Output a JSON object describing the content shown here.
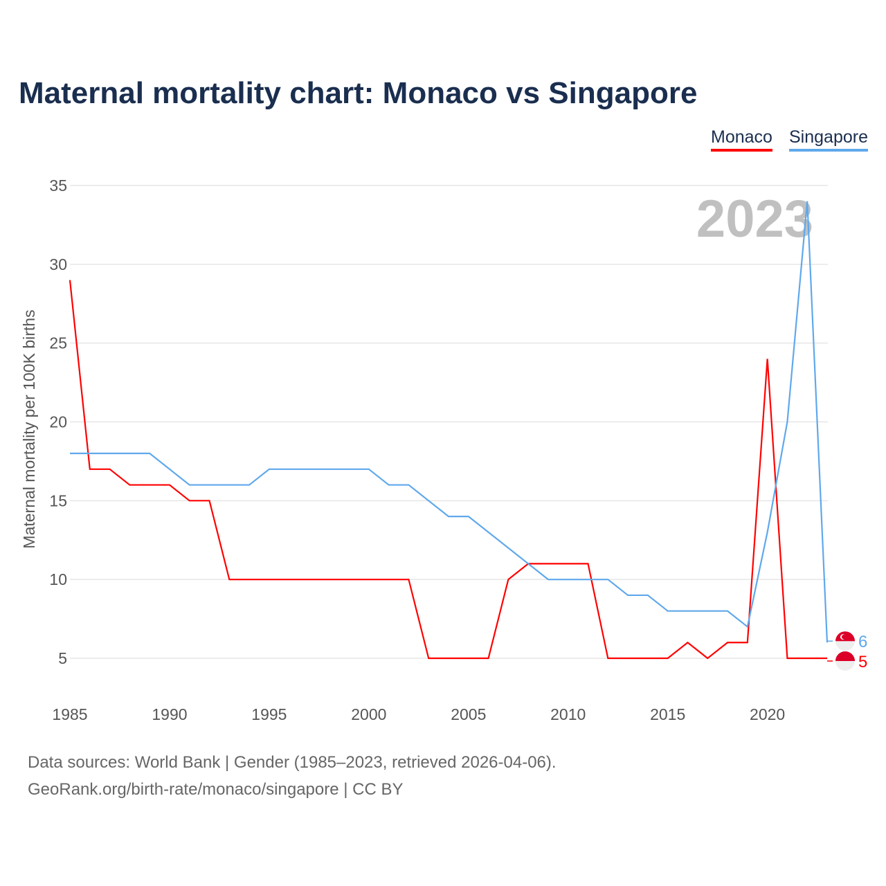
{
  "title": "Maternal mortality chart: Monaco vs Singapore",
  "footer": {
    "line1": "Data sources: World Bank | Gender (1985–2023, retrieved 2026-04-06).",
    "line2": "GeoRank.org/birth-rate/monaco/singapore | CC BY"
  },
  "chart_data": {
    "type": "line",
    "title": "Maternal mortality chart: Monaco vs Singapore",
    "xlabel": "",
    "ylabel": "Maternal mortality per 100K births",
    "year_label": "2023",
    "xlim": [
      1985,
      2023
    ],
    "ylim": [
      2.5,
      35
    ],
    "x_ticks": [
      1985,
      1990,
      1995,
      2000,
      2005,
      2010,
      2015,
      2020
    ],
    "y_ticks": [
      5,
      10,
      15,
      20,
      25,
      30,
      35
    ],
    "grid": true,
    "legend_placement": "top-right",
    "x": [
      1985,
      1986,
      1987,
      1988,
      1989,
      1990,
      1991,
      1992,
      1993,
      1994,
      1995,
      1996,
      1997,
      1998,
      1999,
      2000,
      2001,
      2002,
      2003,
      2004,
      2005,
      2006,
      2007,
      2008,
      2009,
      2010,
      2011,
      2012,
      2013,
      2014,
      2015,
      2016,
      2017,
      2018,
      2019,
      2020,
      2021,
      2022,
      2023
    ],
    "series": [
      {
        "name": "Monaco",
        "color": "#ff0000",
        "end_label": "5",
        "values": [
          29,
          17,
          17,
          16,
          16,
          16,
          15,
          15,
          10,
          10,
          10,
          10,
          10,
          10,
          10,
          10,
          10,
          10,
          5,
          5,
          5,
          5,
          10,
          11,
          11,
          11,
          11,
          5,
          5,
          5,
          5,
          6,
          5,
          6,
          6,
          24,
          5,
          5,
          5
        ]
      },
      {
        "name": "Singapore",
        "color": "#5fa8ec",
        "end_label": "6",
        "values": [
          18,
          18,
          18,
          18,
          18,
          17,
          16,
          16,
          16,
          16,
          17,
          17,
          17,
          17,
          17,
          17,
          16,
          16,
          15,
          14,
          14,
          13,
          12,
          11,
          10,
          10,
          10,
          10,
          9,
          9,
          8,
          8,
          8,
          8,
          7,
          13,
          20,
          34,
          6
        ]
      }
    ]
  }
}
